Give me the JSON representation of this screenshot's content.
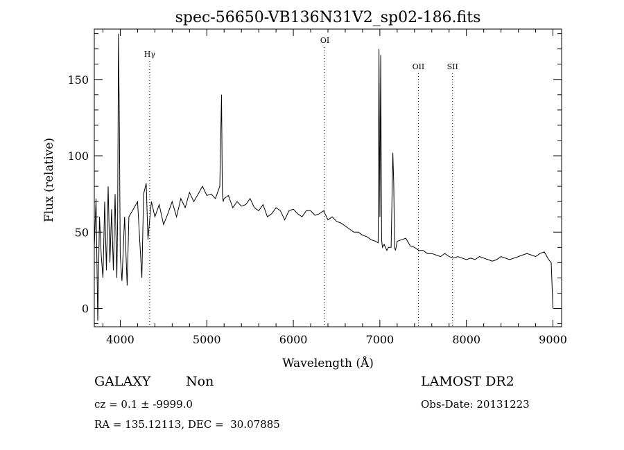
{
  "chart_data": {
    "type": "line",
    "title": "spec-56650-VB136N31V2_sp02-186.fits",
    "xlabel": "Wavelength (Å)",
    "ylabel": "Flux (relative)",
    "xlim": [
      3700,
      9100
    ],
    "ylim": [
      -12,
      183
    ],
    "x_ticks": [
      4000,
      5000,
      6000,
      7000,
      8000,
      9000
    ],
    "x_tick_labels": [
      "4000",
      "5000",
      "6000",
      "7000",
      "8000",
      "9000"
    ],
    "y_ticks": [
      0,
      50,
      100,
      150
    ],
    "y_tick_labels": [
      "0",
      "50",
      "100",
      "150"
    ],
    "grid": false,
    "line_color": "#000000",
    "series": [
      {
        "x": [
          3700,
          3720,
          3740,
          3760,
          3780,
          3800,
          3820,
          3840,
          3860,
          3880,
          3900,
          3920,
          3940,
          3960,
          3970,
          3980,
          3990,
          4000,
          4020,
          4050,
          4080,
          4100,
          4150,
          4200,
          4250,
          4270,
          4300,
          4320,
          4340,
          4360,
          4400,
          4450,
          4500,
          4550,
          4600,
          4650,
          4700,
          4750,
          4800,
          4850,
          4900,
          4950,
          5000,
          5050,
          5100,
          5150,
          5170,
          5180,
          5190,
          5200,
          5250,
          5300,
          5350,
          5400,
          5450,
          5500,
          5550,
          5600,
          5650,
          5700,
          5750,
          5800,
          5850,
          5900,
          5950,
          6000,
          6050,
          6100,
          6150,
          6200,
          6250,
          6300,
          6350,
          6400,
          6450,
          6500,
          6550,
          6600,
          6650,
          6700,
          6750,
          6800,
          6850,
          6900,
          6950,
          6980,
          6990,
          7000,
          7010,
          7020,
          7030,
          7050,
          7080,
          7100,
          7130,
          7150,
          7160,
          7170,
          7180,
          7200,
          7250,
          7300,
          7350,
          7400,
          7450,
          7500,
          7550,
          7600,
          7650,
          7700,
          7750,
          7800,
          7850,
          7900,
          7950,
          8000,
          8050,
          8100,
          8150,
          8200,
          8250,
          8300,
          8350,
          8400,
          8450,
          8500,
          8550,
          8600,
          8650,
          8700,
          8750,
          8800,
          8850,
          8900,
          8950,
          8980,
          9000
        ],
        "y": [
          40,
          72,
          -8,
          60,
          35,
          20,
          70,
          25,
          80,
          30,
          65,
          25,
          75,
          20,
          60,
          180,
          120,
          35,
          18,
          60,
          15,
          60,
          65,
          70,
          20,
          75,
          82,
          45,
          58,
          70,
          60,
          68,
          55,
          62,
          70,
          60,
          72,
          66,
          76,
          70,
          75,
          80,
          74,
          75,
          72,
          80,
          140,
          75,
          70,
          72,
          74,
          66,
          70,
          67,
          68,
          72,
          66,
          64,
          68,
          60,
          62,
          66,
          64,
          58,
          64,
          65,
          62,
          60,
          64,
          64,
          61,
          62,
          64,
          58,
          60,
          57,
          56,
          54,
          52,
          50,
          50,
          48,
          47,
          45,
          44,
          43,
          170,
          60,
          166,
          45,
          40,
          42,
          38,
          40,
          40,
          102,
          82,
          40,
          38,
          44,
          45,
          46,
          41,
          40,
          38,
          38,
          36,
          36,
          35,
          34,
          36,
          34,
          33,
          34,
          33,
          32,
          33,
          32,
          34,
          33,
          32,
          31,
          32,
          34,
          33,
          32,
          33,
          34,
          35,
          36,
          35,
          34,
          36,
          37,
          32,
          30,
          0
        ]
      }
    ],
    "annotations": [
      {
        "label": "Hγ",
        "x": 4340
      },
      {
        "label": "OI",
        "x": 6364
      },
      {
        "label": "OII",
        "x": 7445
      },
      {
        "label": "SII",
        "x": 7840
      }
    ]
  },
  "info": {
    "class": "GALAXY",
    "subclass": "Non",
    "survey": "LAMOST DR2",
    "cz": "cz = 0.1 ± -9999.0",
    "obs_date": "Obs-Date: 20131223",
    "coords": "RA = 135.12113, DEC =  30.07885"
  }
}
